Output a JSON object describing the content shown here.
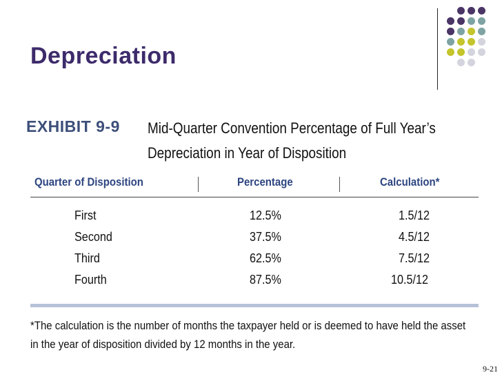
{
  "slide": {
    "title": "Depreciation",
    "page_number": "9-21"
  },
  "exhibit": {
    "label": "EXHIBIT 9-9",
    "title": "Mid-Quarter Convention Percentage of Full Year’s Depreciation in Year of Disposition"
  },
  "table": {
    "headers": [
      "Quarter of Disposition",
      "Percentage",
      "Calculation*"
    ],
    "rows": [
      {
        "quarter": "First",
        "percentage": "12.5%",
        "calculation": "1.5/12"
      },
      {
        "quarter": "Second",
        "percentage": "37.5%",
        "calculation": "4.5/12"
      },
      {
        "quarter": "Third",
        "percentage": "62.5%",
        "calculation": "7.5/12"
      },
      {
        "quarter": "Fourth",
        "percentage": "87.5%",
        "calculation": "10.5/12"
      }
    ],
    "footnote": "*The calculation is the number of months the taxpayer held or is deemed to have held the asset in the year of disposition divided by 12 months in the year."
  },
  "colors": {
    "purple": "#4a3566",
    "teal": "#7fa3a3",
    "olive": "#c4c42c",
    "light": "#d4d4de",
    "title": "#3d2b6b"
  }
}
